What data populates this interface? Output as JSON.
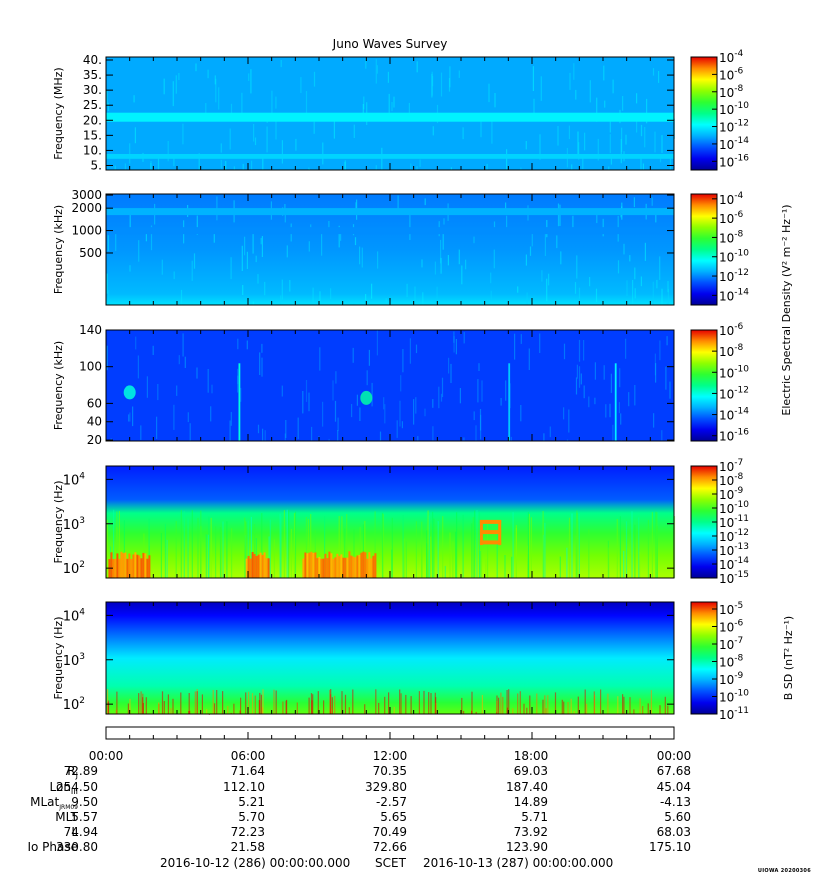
{
  "title": "Juno Waves Survey",
  "stamp": "UIOWA 20200306",
  "chart_data": [
    {
      "type": "heatmap",
      "ylabel": "Frequency (MHz)",
      "y_ticks": [
        "40.",
        "35.",
        "30.",
        "25.",
        "20.",
        "15.",
        "10.",
        "5."
      ],
      "y_tick_values": [
        40,
        35,
        30,
        25,
        20,
        15,
        10,
        5
      ],
      "ylim": [
        3.5,
        41
      ],
      "yscale": "linear",
      "colorbar_ticks": [
        "-4",
        "-6",
        "-8",
        "-10",
        "-12",
        "-14",
        "-16"
      ],
      "colorbar_range": [
        -17,
        -4
      ],
      "colorbar_label": "",
      "features": [
        {
          "kind": "band",
          "y": 21,
          "level": -12,
          "width": 1.5
        },
        {
          "kind": "band",
          "y": 8,
          "level": -12.5,
          "width": 0.8
        }
      ],
      "background_level": -13.2
    },
    {
      "type": "heatmap",
      "ylabel": "Frequency (kHz)",
      "y_ticks": [
        "3000",
        "2000",
        "1000",
        "500"
      ],
      "y_tick_values": [
        3000,
        2000,
        1000,
        500
      ],
      "ylim": [
        100,
        3100
      ],
      "yscale": "log",
      "colorbar_ticks": [
        "-4",
        "-6",
        "-8",
        "-10",
        "-12",
        "-14"
      ],
      "colorbar_range": [
        -15,
        -3.5
      ],
      "colorbar_label": "Electric Spectral Density (V² m⁻² Hz⁻¹)",
      "features": [
        {
          "kind": "band",
          "y": 1800,
          "level": -11.5,
          "width": 0.05
        },
        {
          "kind": "band",
          "y": 1000,
          "level": -12,
          "width": 0.05
        }
      ],
      "background_level": -11.8
    },
    {
      "type": "heatmap",
      "ylabel": "Frequency (kHz)",
      "y_ticks": [
        "140",
        "100",
        "60",
        "40",
        "20"
      ],
      "y_tick_values": [
        140,
        100,
        60,
        40,
        20
      ],
      "ylim": [
        19,
        140
      ],
      "yscale": "linear",
      "colorbar_ticks": [
        "-6",
        "-8",
        "-10",
        "-12",
        "-14",
        "-16"
      ],
      "colorbar_range": [
        -16.5,
        -6
      ],
      "colorbar_label": "",
      "features": [
        {
          "kind": "spot",
          "x": 1.0,
          "y": 72,
          "level": -12
        },
        {
          "kind": "spot",
          "x": 11.0,
          "y": 66,
          "level": -11.5
        },
        {
          "kind": "line",
          "x": 5.6,
          "level": -12
        },
        {
          "kind": "line",
          "x": 17.0,
          "level": -13
        },
        {
          "kind": "line",
          "x": 21.5,
          "level": -12.5
        }
      ],
      "background_level": -14.6
    },
    {
      "type": "heatmap",
      "ylabel": "Frequency (Hz)",
      "y_ticks": [
        "10^4",
        "10^3",
        "10^2"
      ],
      "y_tick_values": [
        10000,
        1000,
        100
      ],
      "ylim": [
        60,
        20000
      ],
      "yscale": "log",
      "colorbar_ticks": [
        "-7",
        "-8",
        "-9",
        "-10",
        "-11",
        "-12",
        "-13",
        "-14",
        "-15"
      ],
      "colorbar_range": [
        -15,
        -7
      ],
      "colorbar_label": "",
      "features": [
        {
          "kind": "burst",
          "x0": 0.1,
          "x1": 1.8,
          "level": -7.5
        },
        {
          "kind": "burst",
          "x0": 5.9,
          "x1": 6.9,
          "level": -7.5
        },
        {
          "kind": "burst",
          "x0": 8.3,
          "x1": 11.4,
          "level": -7.6
        },
        {
          "kind": "lines",
          "x0": 15.8,
          "x1": 16.7,
          "freqs": [
            1100,
            650,
            380
          ],
          "level": -7.8
        }
      ],
      "background_level": -14
    },
    {
      "type": "heatmap",
      "ylabel": "Frequency (Hz)",
      "y_ticks": [
        "10^4",
        "10^3",
        "10^2"
      ],
      "y_tick_values": [
        10000,
        1000,
        100
      ],
      "ylim": [
        60,
        20000
      ],
      "yscale": "log",
      "colorbar_ticks": [
        "-5",
        "-6",
        "-7",
        "-8",
        "-9",
        "-10",
        "-11"
      ],
      "colorbar_range": [
        -11,
        -4.6
      ],
      "colorbar_label": "B SD (nT² Hz⁻¹)",
      "features": [],
      "background_level": -8
    }
  ],
  "ephemeris": {
    "times": [
      "00:00",
      "06:00",
      "12:00",
      "18:00",
      "00:00"
    ],
    "rows": [
      {
        "label": "R",
        "sub": "J",
        "values": [
          "72.89",
          "71.64",
          "70.35",
          "69.03",
          "67.68"
        ]
      },
      {
        "label": "Lon",
        "sub": "III",
        "values": [
          "254.50",
          "112.10",
          "329.80",
          "187.40",
          "45.04"
        ]
      },
      {
        "label": "MLat",
        "sub": "JRM09",
        "values": [
          "9.50",
          "5.21",
          "-2.57",
          "14.89",
          "-4.13"
        ]
      },
      {
        "label": "MLT",
        "sub": "",
        "values": [
          "5.57",
          "5.70",
          "5.65",
          "5.71",
          "5.60"
        ]
      },
      {
        "label": "L",
        "sub": "",
        "values": [
          "74.94",
          "72.23",
          "70.49",
          "73.92",
          "68.03"
        ]
      },
      {
        "label": "Io Phase",
        "sub": "",
        "values": [
          "330.80",
          "21.58",
          "72.66",
          "123.90",
          "175.10"
        ]
      }
    ],
    "start": "2016-10-12 (286) 00:00:00.000",
    "scet": "SCET",
    "end": "2016-10-13 (287) 00:00:00.000"
  }
}
